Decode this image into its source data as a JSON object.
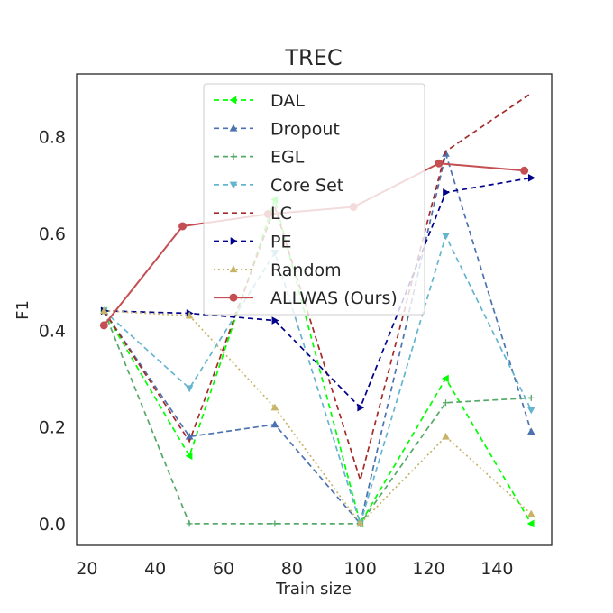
{
  "chart_data": {
    "type": "line",
    "title": "TREC",
    "xlabel": "Train size",
    "ylabel": "F1",
    "xlim": [
      17,
      156
    ],
    "ylim": [
      -0.045,
      0.93
    ],
    "xticks": [
      20,
      40,
      60,
      80,
      100,
      120,
      140
    ],
    "yticks": [
      0.0,
      0.2,
      0.4,
      0.6,
      0.8
    ],
    "ytick_labels": [
      "0.0",
      "0.2",
      "0.4",
      "0.6",
      "0.8"
    ],
    "grid": false,
    "legend_position": "upper-center",
    "series": [
      {
        "name": "DAL",
        "color": "#00ff00",
        "dash": "6,4",
        "marker": "tri-left",
        "width": 1.7,
        "x": [
          25,
          50,
          75,
          100,
          125,
          150
        ],
        "y": [
          0.44,
          0.14,
          0.67,
          0.0,
          0.3,
          0.0
        ]
      },
      {
        "name": "Dropout",
        "color": "#4c72b0",
        "dash": "6,4",
        "marker": "tri-up",
        "width": 1.7,
        "x": [
          25,
          50,
          75,
          100,
          125,
          150
        ],
        "y": [
          0.44,
          0.18,
          0.205,
          0.0,
          0.765,
          0.19
        ]
      },
      {
        "name": "EGL",
        "color": "#55a868",
        "dash": "6,4",
        "marker": "plus",
        "width": 1.7,
        "x": [
          25,
          50,
          75,
          100,
          125,
          150
        ],
        "y": [
          0.44,
          0.0,
          0.0,
          0.0,
          0.25,
          0.26
        ]
      },
      {
        "name": "Core Set",
        "color": "#64b5cd",
        "dash": "6,4",
        "marker": "tri-down",
        "width": 1.7,
        "x": [
          25,
          50,
          75,
          100,
          125,
          150
        ],
        "y": [
          0.44,
          0.28,
          0.56,
          0.0,
          0.595,
          0.235
        ]
      },
      {
        "name": "LC",
        "color": "#a52a2a",
        "dash": "6,4",
        "marker": "none",
        "width": 1.7,
        "x": [
          25,
          50,
          75,
          100,
          125,
          150
        ],
        "y": [
          0.44,
          0.17,
          0.655,
          0.09,
          0.77,
          0.89
        ]
      },
      {
        "name": "PE",
        "color": "#00008b",
        "dash": "6,4",
        "marker": "tri-right",
        "width": 1.7,
        "x": [
          25,
          50,
          75,
          100,
          125,
          150
        ],
        "y": [
          0.44,
          0.435,
          0.42,
          0.24,
          0.685,
          0.715
        ]
      },
      {
        "name": "Random",
        "color": "#c8b468",
        "dash": "2,3",
        "marker": "tri-up",
        "width": 1.7,
        "x": [
          25,
          50,
          75,
          100,
          125,
          150
        ],
        "y": [
          0.44,
          0.43,
          0.24,
          0.0,
          0.18,
          0.02
        ]
      },
      {
        "name": "ALLWAS (Ours)",
        "color": "#c44e52",
        "dash": "",
        "marker": "circle",
        "width": 2,
        "x": [
          25,
          48,
          73,
          98,
          123,
          148
        ],
        "y": [
          0.41,
          0.615,
          0.64,
          0.655,
          0.745,
          0.73
        ]
      }
    ]
  }
}
